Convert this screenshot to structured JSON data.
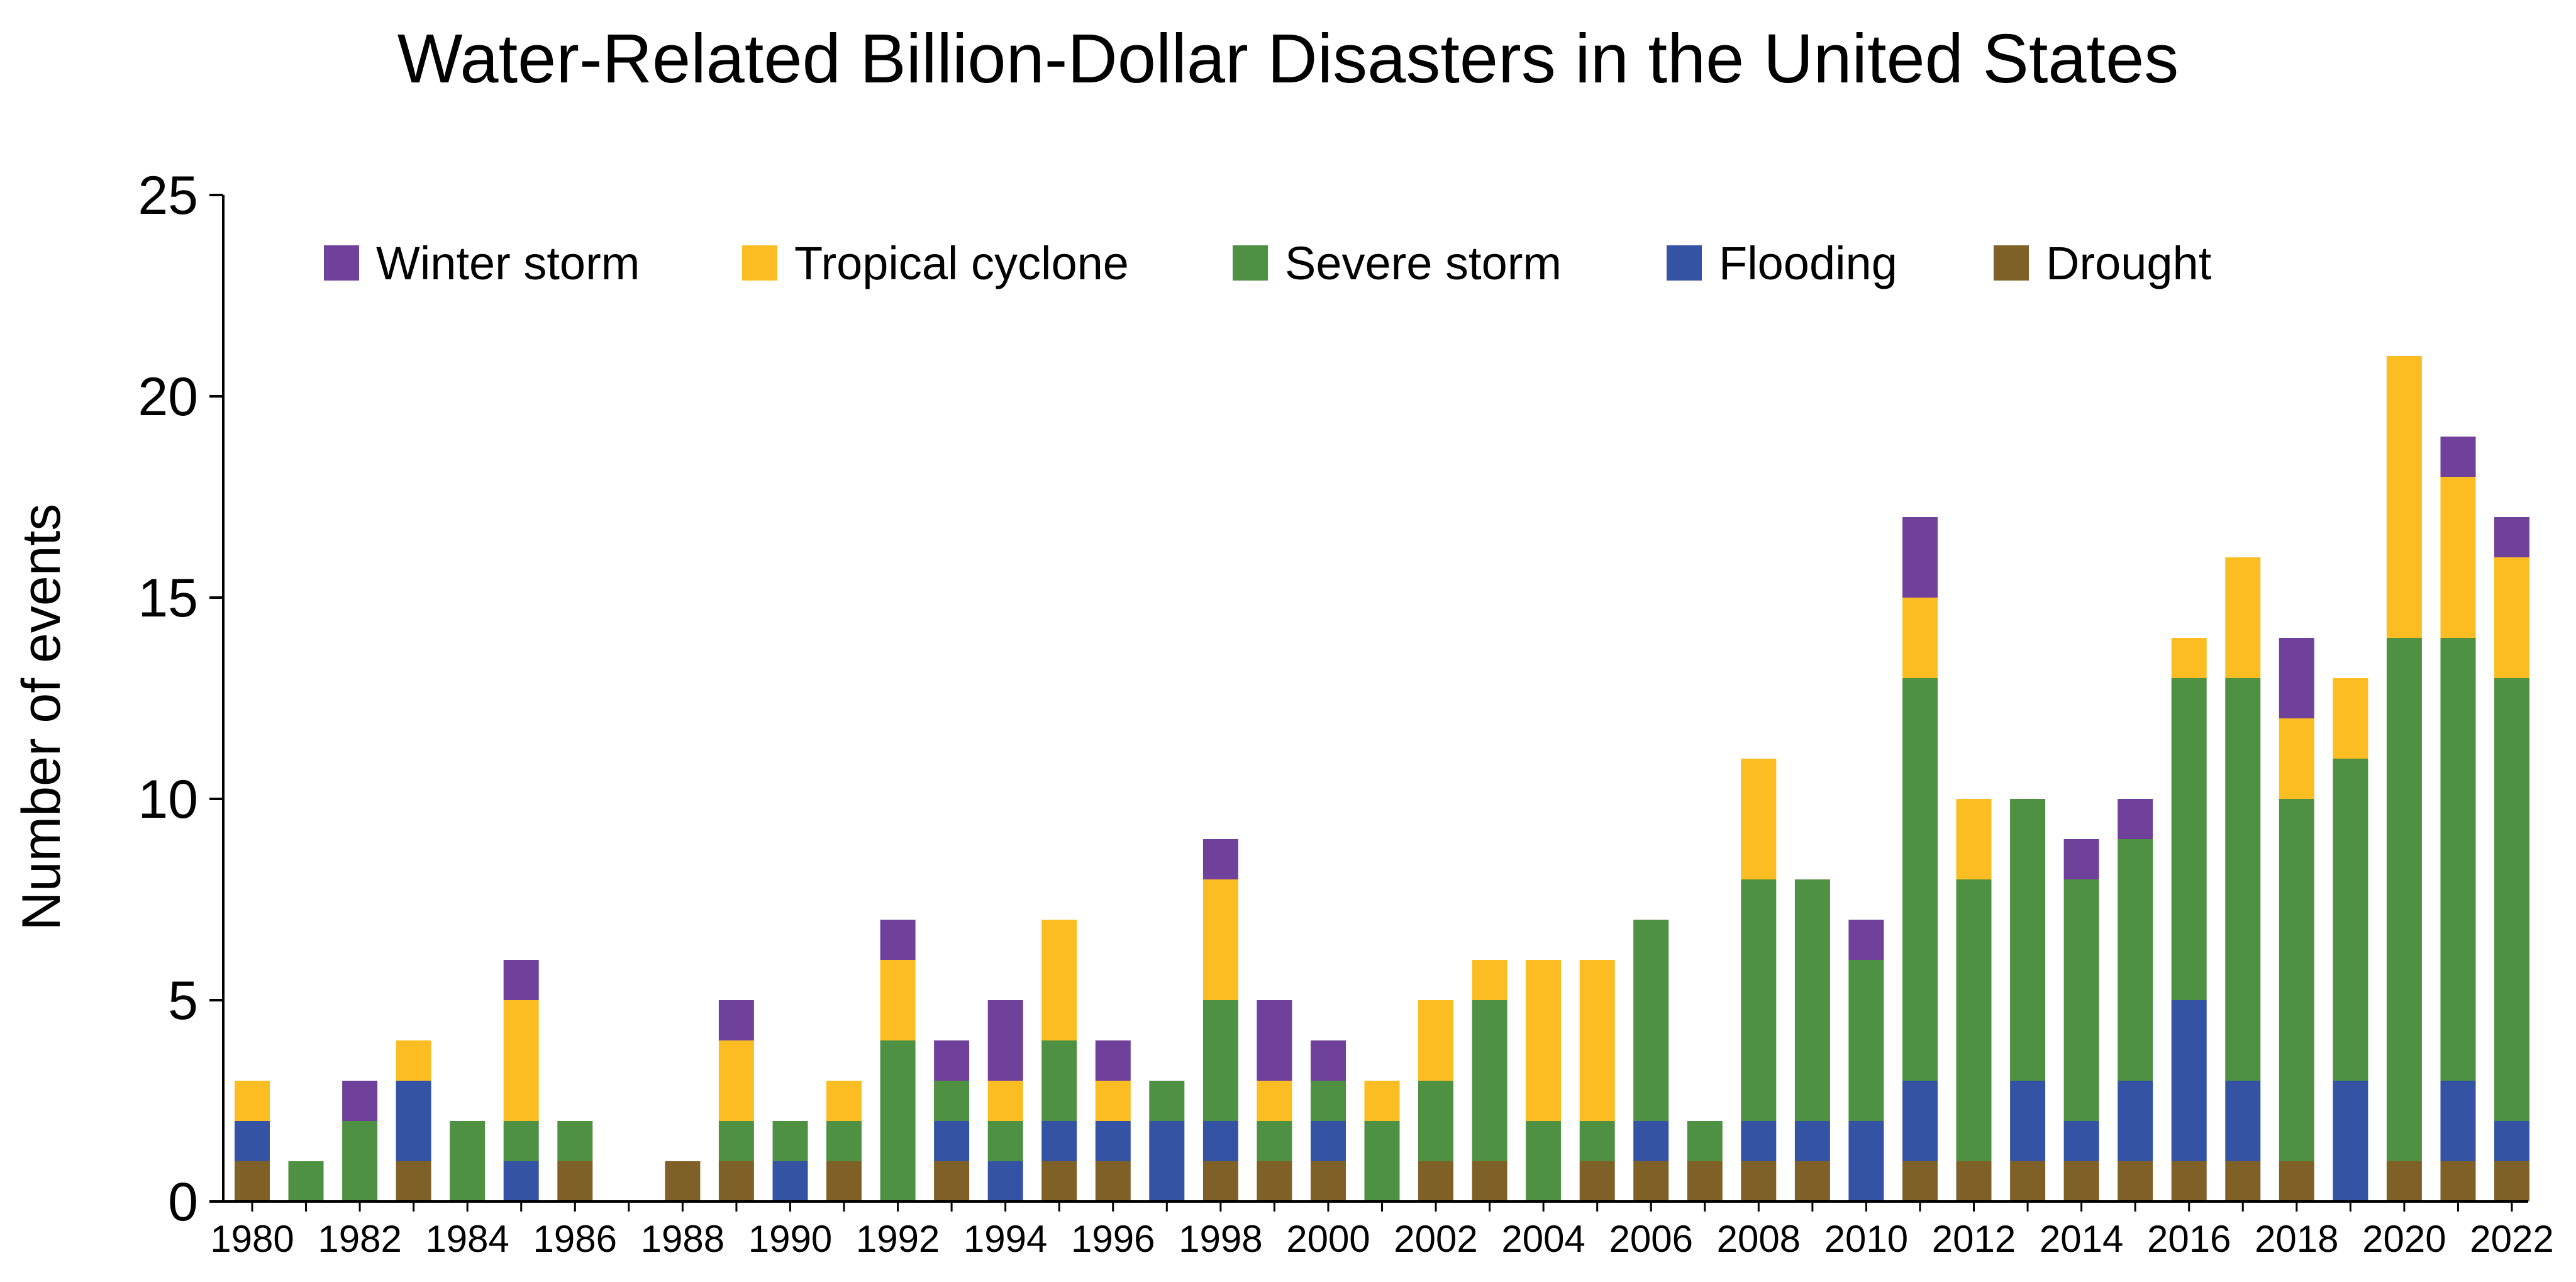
{
  "chart_data": {
    "type": "bar",
    "stacked": true,
    "title": "Water-Related Billion-Dollar Disasters in the United States",
    "xlabel": "",
    "ylabel": "Number of events",
    "ylim": [
      0,
      25
    ],
    "yticks": [
      0,
      5,
      10,
      15,
      20,
      25
    ],
    "grid": false,
    "legend_position": "top",
    "categories": [
      1980,
      1981,
      1982,
      1983,
      1984,
      1985,
      1986,
      1987,
      1988,
      1989,
      1990,
      1991,
      1992,
      1993,
      1994,
      1995,
      1996,
      1997,
      1998,
      1999,
      2000,
      2001,
      2002,
      2003,
      2004,
      2005,
      2006,
      2007,
      2008,
      2009,
      2010,
      2011,
      2012,
      2013,
      2014,
      2015,
      2016,
      2017,
      2018,
      2019,
      2020,
      2021,
      2022
    ],
    "xtick_labels": [
      "1980",
      "1982",
      "1984",
      "1986",
      "1988",
      "1990",
      "1992",
      "1994",
      "1996",
      "1998",
      "2000",
      "2002",
      "2004",
      "2006",
      "2008",
      "2010",
      "2012",
      "2014",
      "2016",
      "2018",
      "2020",
      "2022"
    ],
    "series": [
      {
        "name": "Drought",
        "color": "#7f6127",
        "values": [
          1,
          0,
          0,
          1,
          0,
          0,
          1,
          0,
          1,
          1,
          0,
          1,
          0,
          1,
          0,
          1,
          1,
          0,
          1,
          1,
          1,
          0,
          1,
          1,
          0,
          1,
          1,
          1,
          1,
          1,
          0,
          1,
          1,
          1,
          1,
          1,
          1,
          1,
          1,
          0,
          1,
          1,
          1
        ]
      },
      {
        "name": "Flooding",
        "color": "#3553a5",
        "values": [
          1,
          0,
          0,
          2,
          0,
          1,
          0,
          0,
          0,
          0,
          1,
          0,
          0,
          1,
          1,
          1,
          1,
          2,
          1,
          0,
          1,
          0,
          0,
          0,
          0,
          0,
          1,
          0,
          1,
          1,
          2,
          2,
          0,
          2,
          1,
          2,
          4,
          2,
          0,
          3,
          0,
          2,
          1
        ]
      },
      {
        "name": "Severe storm",
        "color": "#4f9142",
        "values": [
          0,
          1,
          2,
          0,
          2,
          1,
          1,
          0,
          0,
          1,
          1,
          1,
          4,
          1,
          1,
          2,
          0,
          1,
          3,
          1,
          1,
          2,
          2,
          4,
          2,
          1,
          5,
          1,
          6,
          6,
          4,
          10,
          7,
          7,
          6,
          6,
          8,
          10,
          9,
          8,
          13,
          11,
          11
        ]
      },
      {
        "name": "Tropical cyclone",
        "color": "#fbbd22",
        "values": [
          1,
          0,
          0,
          1,
          0,
          3,
          0,
          0,
          0,
          2,
          0,
          1,
          2,
          0,
          1,
          3,
          1,
          0,
          3,
          1,
          0,
          1,
          2,
          1,
          4,
          4,
          0,
          0,
          3,
          0,
          0,
          2,
          2,
          0,
          0,
          0,
          1,
          3,
          2,
          2,
          7,
          4,
          3
        ]
      },
      {
        "name": "Winter storm",
        "color": "#70419b",
        "values": [
          0,
          0,
          1,
          0,
          0,
          1,
          0,
          0,
          0,
          1,
          0,
          0,
          1,
          1,
          2,
          0,
          1,
          0,
          1,
          2,
          1,
          0,
          0,
          0,
          0,
          0,
          0,
          0,
          0,
          0,
          1,
          2,
          0,
          0,
          1,
          1,
          0,
          0,
          2,
          0,
          0,
          1,
          1
        ]
      }
    ],
    "legend": [
      "Winter storm",
      "Tropical cyclone",
      "Severe storm",
      "Flooding",
      "Drought"
    ]
  }
}
